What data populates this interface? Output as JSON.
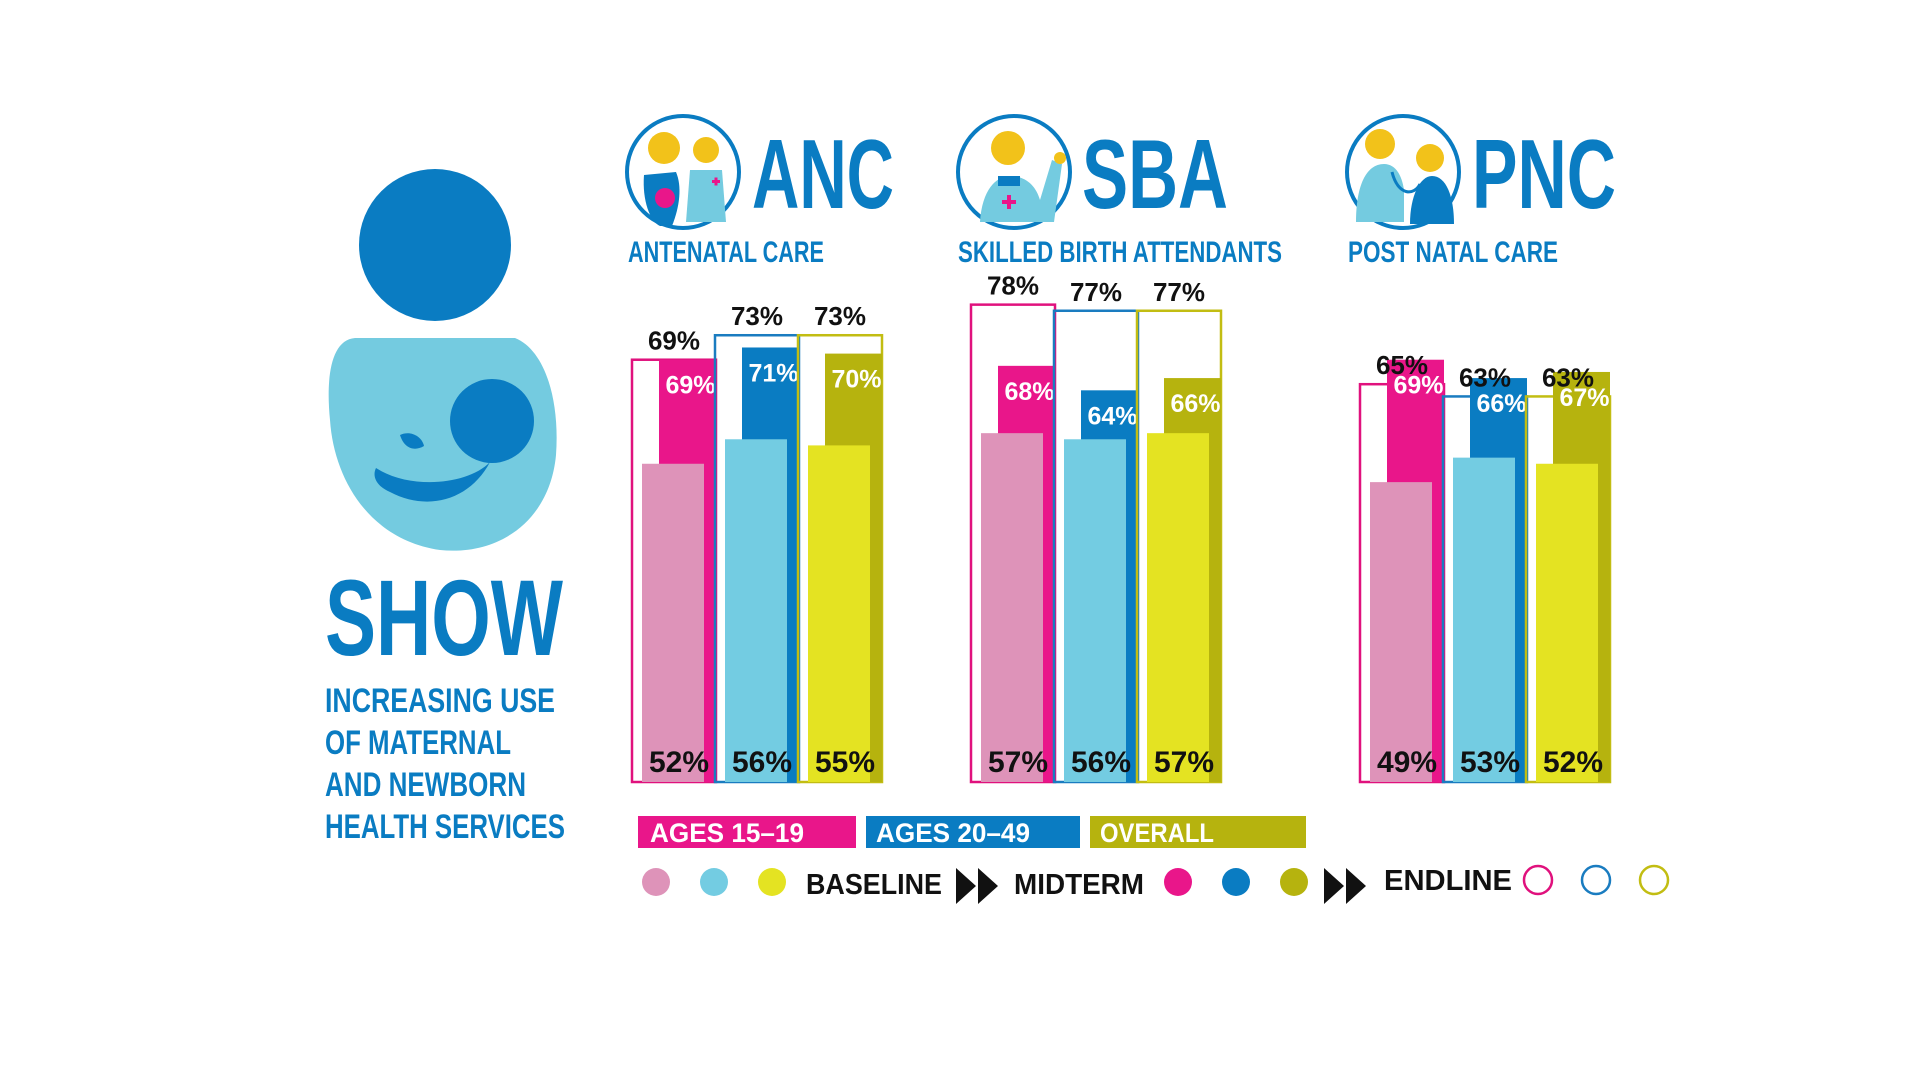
{
  "brand": {
    "name": "SHOW",
    "tagline": [
      "INCREASING USE",
      "OF MATERNAL",
      "AND NEWBORN",
      "HEALTH SERVICES"
    ]
  },
  "colors": {
    "dark_blue": "#0a7cc2",
    "light_blue_icon": "#74cbe0",
    "baseline": [
      "#de93b9",
      "#73cce2",
      "#e4e322"
    ],
    "midterm": [
      "#e9168a",
      "#0a7cc2",
      "#b6b30e"
    ],
    "endline": [
      "#e0117d",
      "#1a7cc0",
      "#c2bd12"
    ]
  },
  "legend": {
    "groups": [
      "AGES 15–19",
      "AGES 20–49",
      "OVERALL"
    ],
    "baseline_label": "BASELINE",
    "midterm_label": "MIDTERM",
    "endline_label": "ENDLINE"
  },
  "chart_data": [
    {
      "type": "bar",
      "title": "ANC",
      "subtitle": "ANTENATAL CARE",
      "icon": "mother-and-health-worker-icon",
      "ylim": [
        0,
        100
      ],
      "categories": [
        "AGES 15–19",
        "AGES 20–49",
        "OVERALL"
      ],
      "series": [
        {
          "name": "BASELINE",
          "values": [
            52,
            56,
            55
          ]
        },
        {
          "name": "MIDTERM",
          "values": [
            69,
            71,
            70
          ]
        },
        {
          "name": "ENDLINE",
          "values": [
            69,
            73,
            73
          ]
        }
      ]
    },
    {
      "type": "bar",
      "title": "SBA",
      "subtitle": "SKILLED BIRTH ATTENDANTS",
      "icon": "health-worker-icon",
      "ylim": [
        0,
        100
      ],
      "categories": [
        "AGES 15–19",
        "AGES 20–49",
        "OVERALL"
      ],
      "series": [
        {
          "name": "BASELINE",
          "values": [
            57,
            56,
            57
          ]
        },
        {
          "name": "MIDTERM",
          "values": [
            68,
            64,
            66
          ]
        },
        {
          "name": "ENDLINE",
          "values": [
            78,
            77,
            77
          ]
        }
      ]
    },
    {
      "type": "bar",
      "title": "PNC",
      "subtitle": "POST NATAL CARE",
      "icon": "stethoscope-exam-icon",
      "ylim": [
        0,
        100
      ],
      "categories": [
        "AGES 15–19",
        "AGES 20–49",
        "OVERALL"
      ],
      "series": [
        {
          "name": "BASELINE",
          "values": [
            49,
            53,
            52
          ]
        },
        {
          "name": "MIDTERM",
          "values": [
            69,
            66,
            67
          ]
        },
        {
          "name": "ENDLINE",
          "values": [
            65,
            63,
            63
          ]
        }
      ]
    }
  ]
}
